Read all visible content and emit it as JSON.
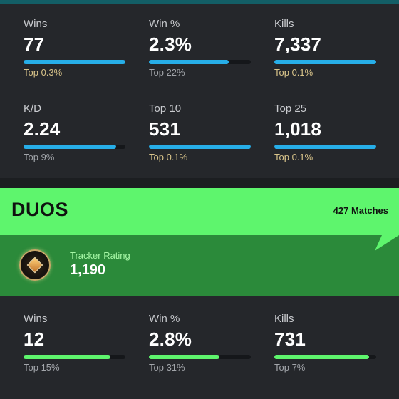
{
  "solo_stats": [
    {
      "label": "Wins",
      "value": "77",
      "rank": "Top 0.3%",
      "fill": 1.0,
      "rank_highlight": true
    },
    {
      "label": "Win %",
      "value": "2.3%",
      "rank": "Top 22%",
      "fill": 0.78,
      "rank_highlight": false
    },
    {
      "label": "Kills",
      "value": "7,337",
      "rank": "Top 0.1%",
      "fill": 1.0,
      "rank_highlight": true
    },
    {
      "label": "K/D",
      "value": "2.24",
      "rank": "Top 9%",
      "fill": 0.91,
      "rank_highlight": false
    },
    {
      "label": "Top 10",
      "value": "531",
      "rank": "Top 0.1%",
      "fill": 1.0,
      "rank_highlight": true
    },
    {
      "label": "Top 25",
      "value": "1,018",
      "rank": "Top 0.1%",
      "fill": 1.0,
      "rank_highlight": true
    }
  ],
  "duos": {
    "title": "DUOS",
    "matches": "427 Matches",
    "tracker_label": "Tracker Rating",
    "tracker_value": "1,190",
    "badge_icon": "rank-badge-icon",
    "stats": [
      {
        "label": "Wins",
        "value": "12",
        "rank": "Top 15%",
        "fill": 0.85,
        "rank_highlight": false
      },
      {
        "label": "Win %",
        "value": "2.8%",
        "rank": "Top 31%",
        "fill": 0.69,
        "rank_highlight": false
      },
      {
        "label": "Kills",
        "value": "731",
        "rank": "Top 7%",
        "fill": 0.93,
        "rank_highlight": false
      }
    ]
  },
  "colors": {
    "solo_bar": "#27aee8",
    "duos_bar": "#5ef56d",
    "rank_highlight": "#d9c48a",
    "rank_default": "#a2a5aa"
  }
}
